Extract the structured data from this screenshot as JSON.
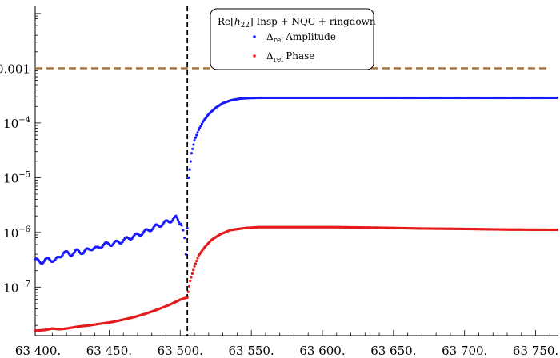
{
  "chart_data": {
    "type": "scatter",
    "y_scale": "log",
    "xlim": [
      63398,
      63766
    ],
    "ylim": [
      1.3e-08,
      0.0135
    ],
    "x_ticks": [
      {
        "value": 63400,
        "label": "63 400."
      },
      {
        "value": 63450,
        "label": "63 450."
      },
      {
        "value": 63500,
        "label": "63 500."
      },
      {
        "value": 63550,
        "label": "63 550."
      },
      {
        "value": 63600,
        "label": "63 600."
      },
      {
        "value": 63650,
        "label": "63 650."
      },
      {
        "value": 63700,
        "label": "63 700."
      },
      {
        "value": 63750,
        "label": "63 750."
      }
    ],
    "y_ticks": [
      {
        "value": 1e-07,
        "mantissa": "10",
        "exp": "−7"
      },
      {
        "value": 1e-06,
        "mantissa": "10",
        "exp": "−6"
      },
      {
        "value": 1e-05,
        "mantissa": "10",
        "exp": "−5"
      },
      {
        "value": 0.0001,
        "mantissa": "10",
        "exp": "−4"
      },
      {
        "value": 0.001,
        "mantissa": "0.001",
        "exp": ""
      }
    ],
    "threshold_line": {
      "y": 0.001,
      "color": "#a0703a",
      "style": "dashed"
    },
    "vertical_line": {
      "x": 63505,
      "color": "#000000",
      "style": "dashed"
    },
    "legend": {
      "title_prefix": "Re[",
      "title_h": "h",
      "title_h_sub": "22",
      "title_suffix": "]  Insp + NQC + ringdown",
      "position": "top-center"
    },
    "series": [
      {
        "name": "Amplitude",
        "legend_prefix": "Δ",
        "legend_sub": "rel",
        "color": "#1a1aff",
        "points": [
          [
            63398,
            3.1e-07
          ],
          [
            63403,
            2.9e-07
          ],
          [
            63408,
            3.3e-07
          ],
          [
            63412,
            3e-07
          ],
          [
            63418,
            4.3e-07
          ],
          [
            63423,
            4e-07
          ],
          [
            63428,
            4.6e-07
          ],
          [
            63432,
            4.3e-07
          ],
          [
            63437,
            5.2e-07
          ],
          [
            63441,
            5e-07
          ],
          [
            63446,
            6e-07
          ],
          [
            63452,
            6.2e-07
          ],
          [
            63458,
            6.8e-07
          ],
          [
            63464,
            7.9e-07
          ],
          [
            63470,
            9e-07
          ],
          [
            63476,
            1.05e-06
          ],
          [
            63482,
            1.25e-06
          ],
          [
            63488,
            1.45e-06
          ],
          [
            63493,
            1.65e-06
          ],
          [
            63497,
            1.85e-06
          ],
          [
            63499,
            1.6e-06
          ],
          [
            63501,
            1.35e-06
          ],
          [
            63502,
            1.1e-06
          ],
          [
            63503,
            8e-07
          ],
          [
            63504,
            4e-07
          ],
          [
            63505,
            1.2e-06
          ],
          [
            63506,
            1e-05
          ],
          [
            63508,
            2.8e-05
          ],
          [
            63510,
            4.8e-05
          ],
          [
            63513,
            7.5e-05
          ],
          [
            63516,
            0.000105
          ],
          [
            63520,
            0.000145
          ],
          [
            63525,
            0.00019
          ],
          [
            63530,
            0.00023
          ],
          [
            63536,
            0.00026
          ],
          [
            63542,
            0.000278
          ],
          [
            63550,
            0.000286
          ],
          [
            63560,
            0.000288
          ],
          [
            63580,
            0.000288
          ],
          [
            63600,
            0.000288
          ],
          [
            63640,
            0.000288
          ],
          [
            63680,
            0.000287
          ],
          [
            63720,
            0.000287
          ],
          [
            63765,
            0.000287
          ]
        ]
      },
      {
        "name": "Phase",
        "legend_prefix": "Δ",
        "legend_sub": "rel",
        "color": "#e61a1a",
        "points": [
          [
            63398,
            1.6e-08
          ],
          [
            63405,
            1.65e-08
          ],
          [
            63410,
            1.75e-08
          ],
          [
            63415,
            1.7e-08
          ],
          [
            63420,
            1.75e-08
          ],
          [
            63428,
            1.9e-08
          ],
          [
            63436,
            2e-08
          ],
          [
            63444,
            2.15e-08
          ],
          [
            63452,
            2.3e-08
          ],
          [
            63460,
            2.55e-08
          ],
          [
            63468,
            2.85e-08
          ],
          [
            63476,
            3.3e-08
          ],
          [
            63484,
            3.9e-08
          ],
          [
            63492,
            4.7e-08
          ],
          [
            63500,
            5.9e-08
          ],
          [
            63505,
            6.5e-08
          ],
          [
            63507,
            1.3e-07
          ],
          [
            63510,
            2.4e-07
          ],
          [
            63513,
            3.8e-07
          ],
          [
            63517,
            5.3e-07
          ],
          [
            63522,
            7.3e-07
          ],
          [
            63528,
            9.2e-07
          ],
          [
            63535,
            1.1e-06
          ],
          [
            63545,
            1.2e-06
          ],
          [
            63555,
            1.25e-06
          ],
          [
            63580,
            1.25e-06
          ],
          [
            63610,
            1.25e-06
          ],
          [
            63640,
            1.22e-06
          ],
          [
            63670,
            1.18e-06
          ],
          [
            63700,
            1.16e-06
          ],
          [
            63730,
            1.13e-06
          ],
          [
            63765,
            1.12e-06
          ]
        ]
      }
    ]
  }
}
